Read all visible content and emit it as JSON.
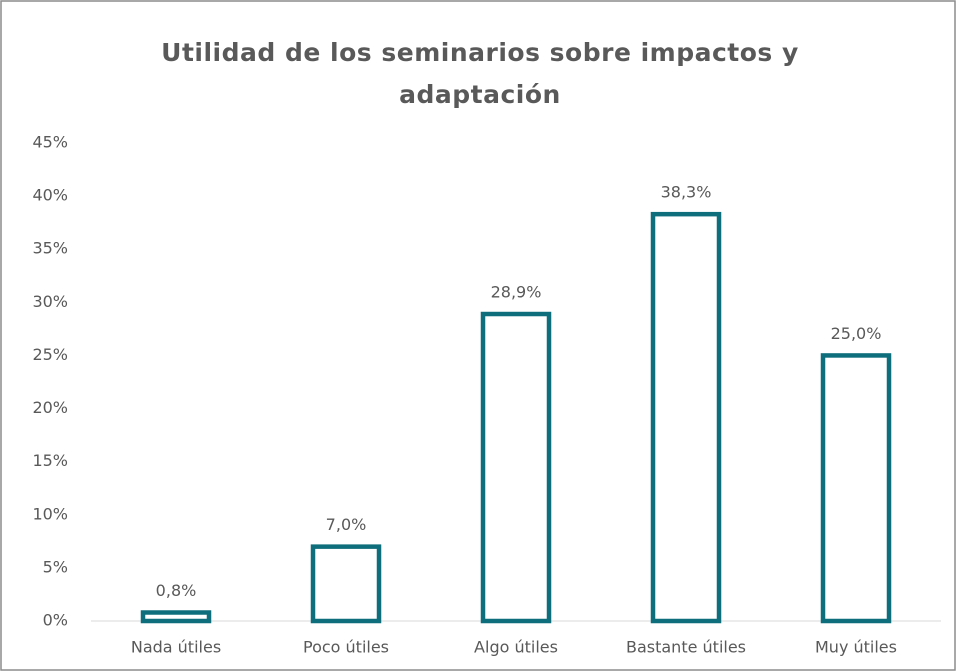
{
  "chart_data": {
    "type": "bar",
    "title": "Utilidad de los seminarios sobre impactos y adaptación",
    "categories": [
      "Nada útiles",
      "Poco útiles",
      "Algo útiles",
      "Bastante útiles",
      "Muy útiles"
    ],
    "values": [
      0.8,
      7.0,
      28.9,
      38.3,
      25.0
    ],
    "value_labels": [
      "0,8%",
      "7,0%",
      "28,9%",
      "38,3%",
      "25,0%"
    ],
    "color": "#0f6e7b",
    "ylim": [
      0,
      45
    ],
    "yticks": [
      {
        "value": 0,
        "label": "0%"
      },
      {
        "value": 5,
        "label": "5%"
      },
      {
        "value": 10,
        "label": "10%"
      },
      {
        "value": 15,
        "label": "15%"
      },
      {
        "value": 20,
        "label": "20%"
      },
      {
        "value": 25,
        "label": "25%"
      },
      {
        "value": 30,
        "label": "30%"
      },
      {
        "value": 35,
        "label": "35%"
      },
      {
        "value": 40,
        "label": "40%"
      },
      {
        "value": 45,
        "label": "45%"
      }
    ],
    "grid": false
  }
}
